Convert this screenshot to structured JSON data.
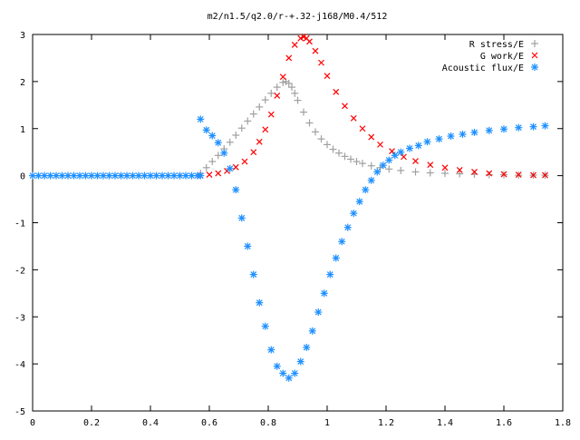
{
  "chart_data": {
    "type": "scatter",
    "title": "m2/n1.5/q2.0/r-+.32-j168/M0.4/512",
    "xlabel": "",
    "ylabel": "",
    "xlim": [
      0,
      1.8
    ],
    "ylim": [
      -5,
      3
    ],
    "xticks": [
      0,
      0.2,
      0.4,
      0.6,
      0.8,
      1,
      1.2,
      1.4,
      1.6,
      1.8
    ],
    "xtick_labels": [
      "0",
      "0.2",
      "0.4",
      "0.6",
      "0.8",
      "1",
      "1.2",
      "1.4",
      "1.6",
      "1.8"
    ],
    "yticks": [
      -5,
      -4,
      -3,
      -2,
      -1,
      0,
      1,
      2,
      3
    ],
    "ytick_labels": [
      "-5",
      "-4",
      "-3",
      "-2",
      "-1",
      "0",
      "1",
      "2",
      "3"
    ],
    "grid": false,
    "legend_position": "top-right",
    "series": [
      {
        "name": "R stress/E",
        "marker": "plus",
        "color": "#a0a0a0",
        "x": [
          0.57,
          0.59,
          0.61,
          0.63,
          0.65,
          0.67,
          0.69,
          0.71,
          0.73,
          0.75,
          0.77,
          0.79,
          0.81,
          0.83,
          0.85,
          0.86,
          0.87,
          0.88,
          0.89,
          0.9,
          0.92,
          0.94,
          0.96,
          0.98,
          1.0,
          1.02,
          1.04,
          1.06,
          1.08,
          1.1,
          1.12,
          1.15,
          1.18,
          1.21,
          1.25,
          1.3,
          1.35,
          1.4,
          1.45,
          1.5,
          1.55,
          1.6,
          1.65,
          1.7,
          1.74
        ],
        "y": [
          0.05,
          0.17,
          0.3,
          0.43,
          0.57,
          0.71,
          0.86,
          1.01,
          1.16,
          1.31,
          1.46,
          1.61,
          1.75,
          1.88,
          1.98,
          2.0,
          1.96,
          1.88,
          1.75,
          1.6,
          1.35,
          1.12,
          0.93,
          0.78,
          0.66,
          0.56,
          0.48,
          0.41,
          0.35,
          0.3,
          0.26,
          0.21,
          0.17,
          0.14,
          0.11,
          0.08,
          0.06,
          0.05,
          0.04,
          0.03,
          0.02,
          0.02,
          0.01,
          0.01,
          0.01
        ]
      },
      {
        "name": "G work/E",
        "marker": "cross",
        "color": "#ff0000",
        "x": [
          0.57,
          0.6,
          0.63,
          0.66,
          0.69,
          0.72,
          0.75,
          0.77,
          0.79,
          0.81,
          0.83,
          0.85,
          0.87,
          0.89,
          0.91,
          0.92,
          0.93,
          0.94,
          0.96,
          0.98,
          1.0,
          1.03,
          1.06,
          1.09,
          1.12,
          1.15,
          1.18,
          1.22,
          1.26,
          1.3,
          1.35,
          1.4,
          1.45,
          1.5,
          1.55,
          1.6,
          1.65,
          1.7,
          1.74
        ],
        "y": [
          0.0,
          0.02,
          0.05,
          0.1,
          0.18,
          0.3,
          0.5,
          0.72,
          0.98,
          1.3,
          1.7,
          2.1,
          2.5,
          2.78,
          2.92,
          2.95,
          2.92,
          2.85,
          2.65,
          2.4,
          2.12,
          1.78,
          1.48,
          1.22,
          1.0,
          0.82,
          0.66,
          0.52,
          0.4,
          0.31,
          0.23,
          0.17,
          0.12,
          0.08,
          0.05,
          0.03,
          0.02,
          0.01,
          0.01
        ]
      },
      {
        "name": "Acoustic flux/E",
        "marker": "star",
        "color": "#1e90ff",
        "x": [
          0.0,
          0.02,
          0.04,
          0.06,
          0.08,
          0.1,
          0.12,
          0.14,
          0.16,
          0.18,
          0.2,
          0.22,
          0.24,
          0.26,
          0.28,
          0.3,
          0.32,
          0.34,
          0.36,
          0.38,
          0.4,
          0.42,
          0.44,
          0.46,
          0.48,
          0.5,
          0.52,
          0.54,
          0.56,
          0.57,
          0.57,
          0.59,
          0.61,
          0.63,
          0.65,
          0.67,
          0.69,
          0.71,
          0.73,
          0.75,
          0.77,
          0.79,
          0.81,
          0.83,
          0.85,
          0.87,
          0.89,
          0.91,
          0.93,
          0.95,
          0.97,
          0.99,
          1.01,
          1.03,
          1.05,
          1.07,
          1.09,
          1.11,
          1.13,
          1.15,
          1.17,
          1.19,
          1.21,
          1.23,
          1.25,
          1.28,
          1.31,
          1.34,
          1.38,
          1.42,
          1.46,
          1.5,
          1.55,
          1.6,
          1.65,
          1.7,
          1.74
        ],
        "y": [
          0,
          0,
          0,
          0,
          0,
          0,
          0,
          0,
          0,
          0,
          0,
          0,
          0,
          0,
          0,
          0,
          0,
          0,
          0,
          0,
          0,
          0,
          0,
          0,
          0,
          0,
          0,
          0,
          0,
          0,
          1.2,
          0.97,
          0.85,
          0.7,
          0.48,
          0.15,
          -0.3,
          -0.9,
          -1.5,
          -2.1,
          -2.7,
          -3.2,
          -3.7,
          -4.05,
          -4.2,
          -4.3,
          -4.2,
          -3.95,
          -3.65,
          -3.3,
          -2.9,
          -2.5,
          -2.1,
          -1.75,
          -1.4,
          -1.1,
          -0.8,
          -0.55,
          -0.3,
          -0.1,
          0.08,
          0.22,
          0.33,
          0.43,
          0.5,
          0.58,
          0.64,
          0.72,
          0.78,
          0.84,
          0.88,
          0.92,
          0.96,
          0.99,
          1.02,
          1.04,
          1.06
        ]
      }
    ]
  }
}
